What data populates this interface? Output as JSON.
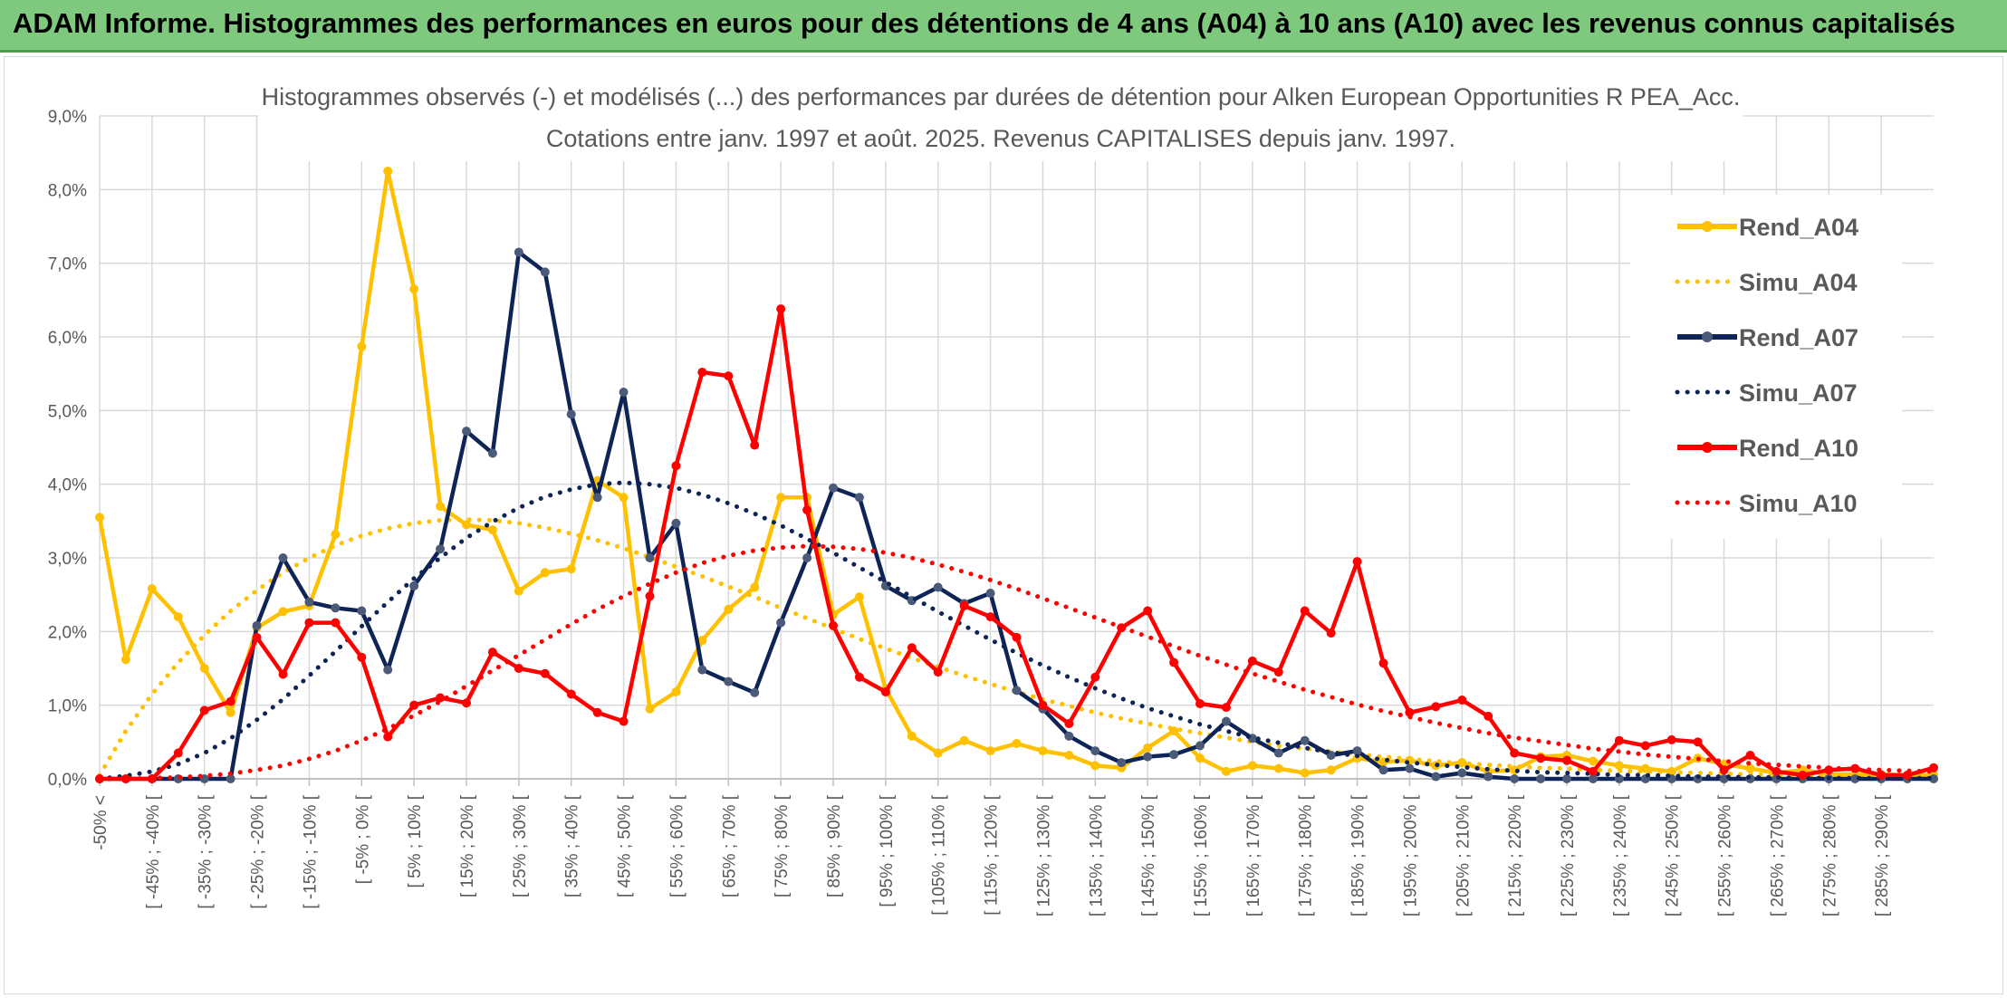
{
  "header": {
    "title": "ADAM Informe. Histogrammes des performances en euros pour des détentions de 4 ans (A04) à 10 ans (A10) avec les revenus connus capitalisés"
  },
  "colors": {
    "A04": "#ffc000",
    "A07": "#0e2356",
    "A10": "#ff0000",
    "grid": "#d9d9d9",
    "header": "#7fc97f"
  },
  "chart_data": {
    "type": "line",
    "title": "Histogrammes observés (-) et modélisés (...) des performances par durées de détention pour Alken European Opportunities R PEA_Acc.",
    "subtitle": "Cotations entre janv. 1997 et août. 2025. Revenus CAPITALISES depuis janv. 1997.",
    "y_unit": "%",
    "ylim": [
      0,
      9
    ],
    "y_ticks": [
      "0,0%",
      "1,0%",
      "2,0%",
      "3,0%",
      "4,0%",
      "5,0%",
      "6,0%",
      "7,0%",
      "8,0%",
      "9,0%"
    ],
    "x_labels": [
      "-50% <",
      "[ -45% ; -40% [",
      "[ -35% ; -30% [",
      "[ -25% ; -20% [",
      "[ -15% ; -10% [",
      "[ -5% ; 0% [",
      "[ 5% ; 10% [",
      "[ 15% ; 20% [",
      "[ 25% ; 30% [",
      "[ 35% ; 40% [",
      "[ 45% ; 50% [",
      "[ 55% ; 60% [",
      "[ 65% ; 70% [",
      "[ 75% ; 80% [",
      "[ 85% ; 90% [",
      "[ 95% ; 100% [",
      "[ 105% ; 110% [",
      "[ 115% ; 120% [",
      "[ 125% ; 130% [",
      "[ 135% ; 140% [",
      "[ 145% ; 150% [",
      "[ 155% ; 160% [",
      "[ 165% ; 170% [",
      "[ 175% ; 180% [",
      "[ 185% ; 190% [",
      "[ 195% ; 200% [",
      "[ 205% ; 210% [",
      "[ 215% ; 220% [",
      "[ 225% ; 230% [",
      "[ 235% ; 240% [",
      "[ 245% ; 250% [",
      "[ 255% ; 260% [",
      "[ 265% ; 270% [",
      "[ 275% ; 280% [",
      "[ 285% ; 290% ["
    ],
    "legend_position": "right",
    "grid": true,
    "series": [
      {
        "name": "Rend_A04",
        "style": "solid",
        "color": "#ffc000",
        "values": [
          3.55,
          1.62,
          2.58,
          2.2,
          1.5,
          0.9,
          2.05,
          2.27,
          2.35,
          3.32,
          5.87,
          8.25,
          6.65,
          3.7,
          3.45,
          3.38,
          2.55,
          2.8,
          2.85,
          4.05,
          3.82,
          0.95,
          1.18,
          1.88,
          2.3,
          2.6,
          3.82,
          3.82,
          2.23,
          2.47,
          1.22,
          0.58,
          0.35,
          0.52,
          0.38,
          0.48,
          0.38,
          0.32,
          0.18,
          0.15,
          0.42,
          0.65,
          0.28,
          0.1,
          0.18,
          0.14,
          0.08,
          0.12,
          0.28,
          0.23,
          0.25,
          0.18,
          0.22,
          0.1,
          0.12,
          0.3,
          0.32,
          0.24,
          0.18,
          0.14,
          0.1,
          0.28,
          0.2,
          0.14,
          0.08,
          0.12,
          0.06,
          0.06,
          0.06,
          0.05,
          0.05
        ]
      },
      {
        "name": "Simu_A04",
        "style": "dotted",
        "color": "#ffc000",
        "values": [
          0.05,
          0.65,
          1.15,
          1.58,
          1.95,
          2.28,
          2.56,
          2.8,
          3.0,
          3.17,
          3.3,
          3.4,
          3.47,
          3.51,
          3.52,
          3.51,
          3.47,
          3.41,
          3.33,
          3.24,
          3.13,
          3.01,
          2.88,
          2.75,
          2.61,
          2.47,
          2.32,
          2.18,
          2.04,
          1.9,
          1.77,
          1.64,
          1.52,
          1.4,
          1.29,
          1.18,
          1.08,
          0.99,
          0.9,
          0.82,
          0.75,
          0.68,
          0.62,
          0.56,
          0.5,
          0.45,
          0.41,
          0.37,
          0.33,
          0.3,
          0.27,
          0.24,
          0.21,
          0.19,
          0.17,
          0.15,
          0.14,
          0.12,
          0.11,
          0.1,
          0.09,
          0.08,
          0.07,
          0.06,
          0.05,
          0.05,
          0.04,
          0.04,
          0.03,
          0.03,
          0.03
        ]
      },
      {
        "name": "Rend_A07",
        "style": "solid",
        "color": "#0e2356",
        "values": [
          0,
          0,
          0,
          0,
          0,
          0,
          2.08,
          3.0,
          2.4,
          2.32,
          2.28,
          1.48,
          2.62,
          3.12,
          4.72,
          4.42,
          7.15,
          6.88,
          4.95,
          3.82,
          5.25,
          3.0,
          3.47,
          1.48,
          1.32,
          1.17,
          2.12,
          3.0,
          3.95,
          3.82,
          2.62,
          2.42,
          2.6,
          2.38,
          2.52,
          1.2,
          0.95,
          0.58,
          0.38,
          0.22,
          0.3,
          0.33,
          0.45,
          0.78,
          0.55,
          0.35,
          0.52,
          0.32,
          0.38,
          0.12,
          0.14,
          0.03,
          0.08,
          0.03,
          0,
          0,
          0,
          0,
          0,
          0,
          0,
          0,
          0,
          0,
          0,
          0,
          0,
          0,
          0,
          0,
          0
        ]
      },
      {
        "name": "Simu_A07",
        "style": "dotted",
        "color": "#0e2356",
        "values": [
          0,
          0.04,
          0.1,
          0.2,
          0.35,
          0.55,
          0.8,
          1.08,
          1.4,
          1.73,
          2.07,
          2.4,
          2.72,
          3.0,
          3.27,
          3.49,
          3.68,
          3.83,
          3.93,
          4.0,
          4.02,
          4.0,
          3.95,
          3.86,
          3.74,
          3.6,
          3.44,
          3.26,
          3.07,
          2.87,
          2.67,
          2.47,
          2.27,
          2.08,
          1.89,
          1.71,
          1.54,
          1.38,
          1.23,
          1.09,
          0.96,
          0.85,
          0.74,
          0.65,
          0.56,
          0.49,
          0.42,
          0.36,
          0.31,
          0.26,
          0.22,
          0.19,
          0.16,
          0.13,
          0.11,
          0.09,
          0.08,
          0.07,
          0.05,
          0.05,
          0.04,
          0.03,
          0.03,
          0.02,
          0.02,
          0.01,
          0.01,
          0.01,
          0.01,
          0.01,
          0.01
        ]
      },
      {
        "name": "Rend_A10",
        "style": "solid",
        "color": "#ff0000",
        "values": [
          0,
          0,
          0,
          0.35,
          0.93,
          1.05,
          1.92,
          1.42,
          2.12,
          2.12,
          1.65,
          0.57,
          1.0,
          1.1,
          1.03,
          1.72,
          1.5,
          1.43,
          1.15,
          0.9,
          0.78,
          2.48,
          4.25,
          5.52,
          5.47,
          4.53,
          6.38,
          3.65,
          2.08,
          1.38,
          1.18,
          1.78,
          1.45,
          2.35,
          2.2,
          1.92,
          1.0,
          0.75,
          1.38,
          2.05,
          2.28,
          1.58,
          1.02,
          0.97,
          1.6,
          1.45,
          2.28,
          1.98,
          2.95,
          1.57,
          0.9,
          0.98,
          1.07,
          0.85,
          0.35,
          0.28,
          0.25,
          0.1,
          0.52,
          0.45,
          0.53,
          0.5,
          0.12,
          0.32,
          0.1,
          0.05,
          0.12,
          0.14,
          0.05,
          0.05,
          0.15
        ]
      },
      {
        "name": "Simu_A10",
        "style": "dotted",
        "color": "#ff0000",
        "values": [
          0,
          0,
          0.01,
          0.02,
          0.04,
          0.07,
          0.12,
          0.18,
          0.27,
          0.38,
          0.52,
          0.68,
          0.86,
          1.05,
          1.26,
          1.47,
          1.68,
          1.89,
          2.1,
          2.3,
          2.48,
          2.65,
          2.8,
          2.93,
          3.03,
          3.1,
          3.14,
          3.16,
          3.15,
          3.12,
          3.07,
          3.0,
          2.91,
          2.81,
          2.7,
          2.58,
          2.45,
          2.32,
          2.19,
          2.06,
          1.93,
          1.8,
          1.67,
          1.55,
          1.43,
          1.32,
          1.21,
          1.11,
          1.01,
          0.92,
          0.84,
          0.76,
          0.69,
          0.62,
          0.56,
          0.51,
          0.46,
          0.41,
          0.37,
          0.33,
          0.3,
          0.27,
          0.24,
          0.21,
          0.19,
          0.17,
          0.15,
          0.13,
          0.12,
          0.11,
          0.1
        ]
      }
    ]
  }
}
